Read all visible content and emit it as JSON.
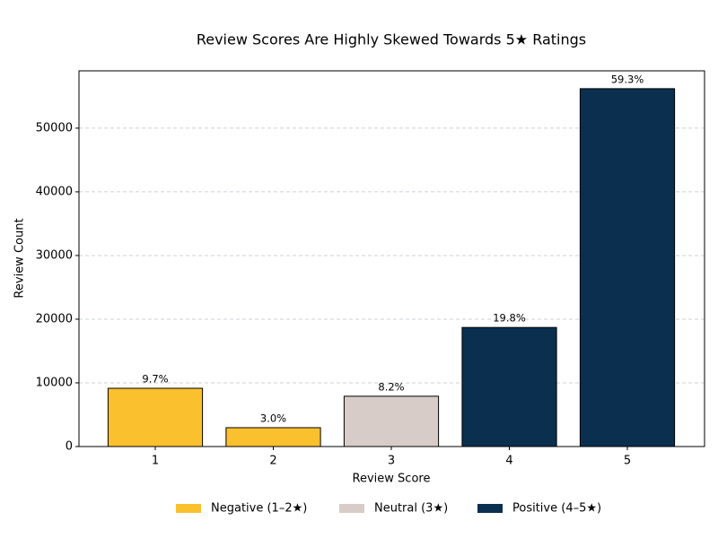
{
  "chart_data": {
    "type": "bar",
    "title": "Review Scores Are Highly Skewed Towards 5★ Ratings",
    "x_label": "Review Score",
    "y_label": "Review Count",
    "categories": [
      "1",
      "2",
      "3",
      "4",
      "5"
    ],
    "values": [
      9150,
      2960,
      7900,
      18700,
      56200
    ],
    "share_labels": [
      "9.7%",
      "3.0%",
      "8.2%",
      "19.8%",
      "59.3%"
    ],
    "colors": [
      "#fbc02d",
      "#fbc02d",
      "#d7ccc8",
      "#0b2f4f",
      "#0b2f4f"
    ],
    "legend": [
      {
        "name": "Negative (1–2★)",
        "color": "#fbc02d"
      },
      {
        "name": "Neutral (3★)",
        "color": "#d7ccc8"
      },
      {
        "name": "Positive (4–5★)",
        "color": "#0b2f4f"
      }
    ],
    "legend_position": "bottom",
    "ylim": [
      0,
      59000
    ],
    "yticks": [
      0,
      10000,
      20000,
      30000,
      40000,
      50000
    ],
    "grid": true
  }
}
